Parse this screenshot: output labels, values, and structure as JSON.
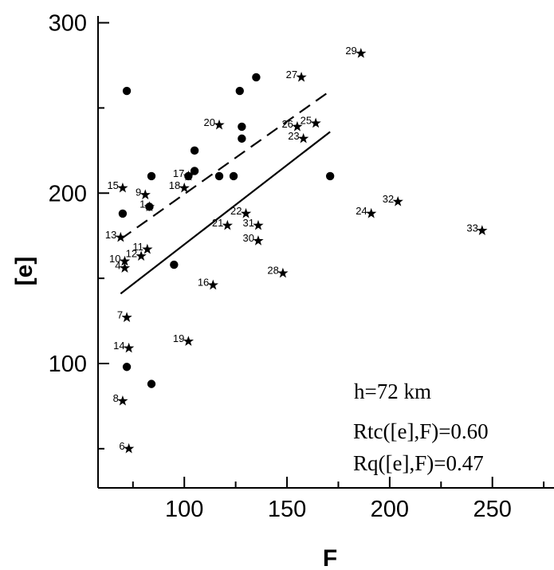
{
  "chart_data": {
    "type": "scatter",
    "title": "",
    "xlabel": "F",
    "ylabel": "[e]",
    "xlim": [
      58,
      280
    ],
    "ylim": [
      27,
      304
    ],
    "x_ticks": [
      100,
      150,
      200,
      250
    ],
    "y_ticks": [
      100,
      200,
      300
    ],
    "annotations": [
      "h=72 km",
      "Rtc([e],F)=0.60",
      "Rq([e],F)=0.47"
    ],
    "series": [
      {
        "marker": "circle",
        "points": [
          {
            "x": 72,
            "y": 260
          },
          {
            "x": 70,
            "y": 188
          },
          {
            "x": 72,
            "y": 98
          },
          {
            "x": 84,
            "y": 210
          },
          {
            "x": 83,
            "y": 192
          },
          {
            "x": 84,
            "y": 88
          },
          {
            "x": 95,
            "y": 158
          },
          {
            "x": 102,
            "y": 210
          },
          {
            "x": 105,
            "y": 213
          },
          {
            "x": 105,
            "y": 225
          },
          {
            "x": 117,
            "y": 210
          },
          {
            "x": 124,
            "y": 210
          },
          {
            "x": 127,
            "y": 260
          },
          {
            "x": 128,
            "y": 239
          },
          {
            "x": 128,
            "y": 232
          },
          {
            "x": 135,
            "y": 268
          },
          {
            "x": 171,
            "y": 210
          }
        ]
      },
      {
        "marker": "star",
        "points": [
          {
            "label": "1",
            "x": 83,
            "y": 192
          },
          {
            "label": "4",
            "x": 71,
            "y": 156
          },
          {
            "label": "6",
            "x": 73,
            "y": 50
          },
          {
            "label": "7",
            "x": 72,
            "y": 127
          },
          {
            "label": "8",
            "x": 70,
            "y": 78
          },
          {
            "label": "9",
            "x": 81,
            "y": 199
          },
          {
            "label": "10",
            "x": 71,
            "y": 160
          },
          {
            "label": "11",
            "x": 82,
            "y": 167
          },
          {
            "label": "12",
            "x": 79,
            "y": 163
          },
          {
            "label": "13",
            "x": 69,
            "y": 174
          },
          {
            "label": "14",
            "x": 73,
            "y": 109
          },
          {
            "label": "15",
            "x": 70,
            "y": 203
          },
          {
            "label": "16",
            "x": 114,
            "y": 146
          },
          {
            "label": "17",
            "x": 102,
            "y": 210
          },
          {
            "label": "18",
            "x": 100,
            "y": 203
          },
          {
            "label": "19",
            "x": 102,
            "y": 113
          },
          {
            "label": "20",
            "x": 117,
            "y": 240
          },
          {
            "label": "21",
            "x": 121,
            "y": 181
          },
          {
            "label": "22",
            "x": 130,
            "y": 188
          },
          {
            "label": "23",
            "x": 158,
            "y": 232
          },
          {
            "label": "24",
            "x": 191,
            "y": 188
          },
          {
            "label": "25",
            "x": 164,
            "y": 241
          },
          {
            "label": "26",
            "x": 155,
            "y": 239
          },
          {
            "label": "27",
            "x": 157,
            "y": 268
          },
          {
            "label": "28",
            "x": 148,
            "y": 153
          },
          {
            "label": "29",
            "x": 186,
            "y": 282
          },
          {
            "label": "30",
            "x": 136,
            "y": 172
          },
          {
            "label": "31",
            "x": 136,
            "y": 181
          },
          {
            "label": "32",
            "x": 204,
            "y": 195
          },
          {
            "label": "33",
            "x": 245,
            "y": 178
          }
        ]
      }
    ],
    "fit_lines": [
      {
        "style": "solid",
        "x": [
          69,
          171
        ],
        "y": [
          141,
          236
        ]
      },
      {
        "style": "dashed",
        "x": [
          69,
          171
        ],
        "y": [
          173,
          260
        ]
      }
    ]
  }
}
